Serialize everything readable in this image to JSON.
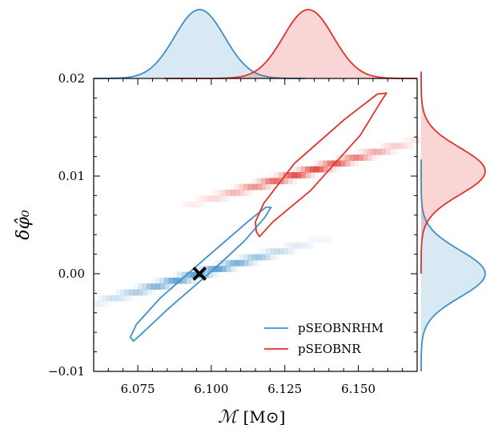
{
  "chart_data": {
    "type": "contour",
    "xlabel_symbol": "ℳ",
    "xlabel_unit": "[M⊙]",
    "ylabel": "δφ̂₀",
    "xlim": [
      6.06,
      6.17
    ],
    "ylim": [
      -0.01,
      0.02
    ],
    "xticks": [
      6.075,
      6.1,
      6.125,
      6.15
    ],
    "xtick_labels": [
      "6.075",
      "6.100",
      "6.125",
      "6.150"
    ],
    "yticks": [
      -0.01,
      0.0,
      0.01,
      0.02
    ],
    "ytick_labels": [
      "−0.01",
      "0.00",
      "0.01",
      "0.02"
    ],
    "legend_position": "lower-right",
    "true_value": {
      "marker": "x",
      "x": 6.096,
      "y": 0.0,
      "color": "#000000"
    },
    "series": [
      {
        "name": "pSEOBNRHM",
        "color": "#3f8fc9",
        "fill": "#3f8fc9",
        "center": [
          6.096,
          0.0
        ],
        "contour": [
          [
            6.0725,
            -0.0065
          ],
          [
            6.0735,
            -0.0069
          ],
          [
            6.0765,
            -0.0061
          ],
          [
            6.0853,
            -0.0036
          ],
          [
            6.1003,
            0.0003
          ],
          [
            6.1111,
            0.0033
          ],
          [
            6.1183,
            0.0058
          ],
          [
            6.1203,
            0.0068
          ],
          [
            6.1185,
            0.0068
          ],
          [
            6.1127,
            0.0054
          ],
          [
            6.0977,
            0.0015
          ],
          [
            6.0826,
            -0.0025
          ],
          [
            6.0745,
            -0.0052
          ],
          [
            6.0725,
            -0.0065
          ]
        ],
        "marginal_x": {
          "mean": 6.096,
          "sd": 0.0085,
          "xrange": [
            6.06,
            6.132
          ]
        },
        "marginal_y": {
          "mean": 0.0,
          "sd": 0.0024,
          "yrange": [
            -0.01,
            0.0117
          ]
        }
      },
      {
        "name": "pSEOBNR",
        "color": "#e0322b",
        "fill": "#e0322b",
        "center": [
          6.133,
          0.0105
        ],
        "contour": [
          [
            6.1153,
            0.0043
          ],
          [
            6.1164,
            0.0038
          ],
          [
            6.1209,
            0.0053
          ],
          [
            6.1337,
            0.0085
          ],
          [
            6.1507,
            0.0142
          ],
          [
            6.1576,
            0.0176
          ],
          [
            6.1596,
            0.0185
          ],
          [
            6.1565,
            0.0184
          ],
          [
            6.1453,
            0.0158
          ],
          [
            6.1283,
            0.0113
          ],
          [
            6.1178,
            0.0072
          ],
          [
            6.115,
            0.0053
          ],
          [
            6.1153,
            0.0043
          ]
        ],
        "marginal_x": {
          "mean": 6.133,
          "sd": 0.0085,
          "xrange": [
            6.084,
            6.17
          ]
        },
        "marginal_y": {
          "mean": 0.0105,
          "sd": 0.0024,
          "yrange": [
            0.0,
            0.0207
          ]
        }
      }
    ]
  }
}
